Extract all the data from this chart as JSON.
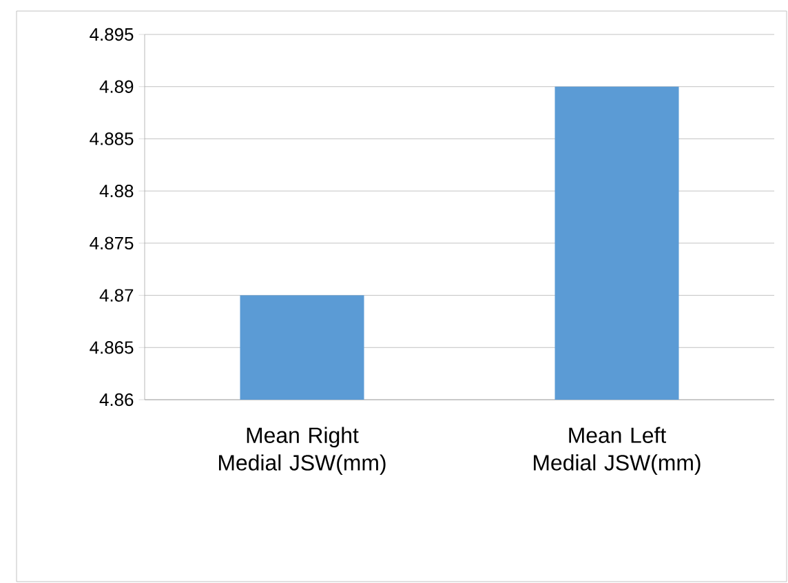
{
  "chart_data": {
    "type": "bar",
    "categories": [
      "Mean Right Medial JSW(mm)",
      "Mean Left Medial JSW(mm)"
    ],
    "values": [
      4.87,
      4.89
    ],
    "color": "#5b9bd5",
    "ylim": [
      4.86,
      4.895
    ],
    "yticks": [
      4.86,
      4.865,
      4.87,
      4.875,
      4.88,
      4.885,
      4.89,
      4.895
    ],
    "grid": "y"
  }
}
